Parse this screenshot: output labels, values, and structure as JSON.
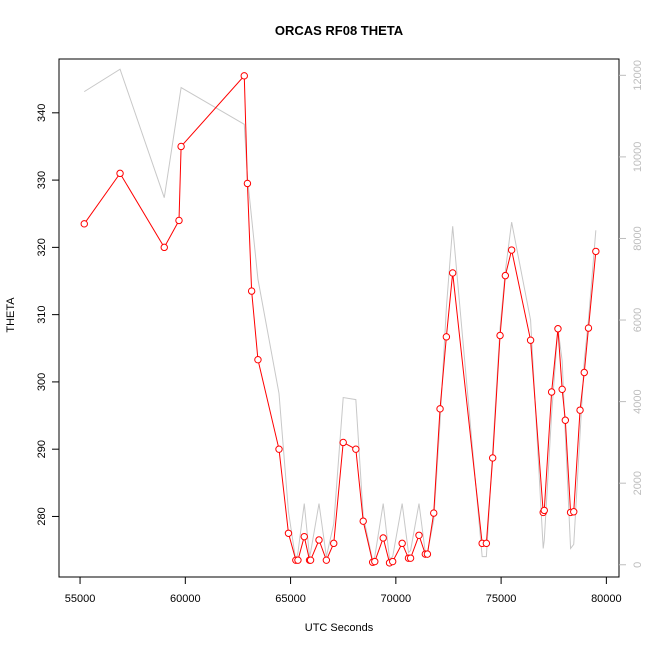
{
  "chart_data": {
    "type": "line",
    "title": "ORCAS RF08 THETA",
    "xlabel": "UTC Seconds",
    "ylabel": "THETA",
    "xlim": [
      54000,
      80600
    ],
    "ylim": [
      271,
      348
    ],
    "y2lim": [
      -300,
      12400
    ],
    "x_ticks": [
      55000,
      60000,
      65000,
      70000,
      75000,
      80000
    ],
    "y_ticks": [
      280,
      290,
      300,
      310,
      320,
      330,
      340
    ],
    "y2_ticks": [
      0,
      2000,
      4000,
      6000,
      8000,
      10000,
      12000
    ],
    "grid": false,
    "colors": {
      "primary": "#ff0000",
      "secondary": "#c8c8c8",
      "secondary_axis": "#bdbdbd"
    },
    "series": [
      {
        "axis": "left",
        "marker": "circle",
        "color": "#ff0000",
        "x": [
          55200,
          56900,
          59000,
          59700,
          59800,
          62800,
          62950,
          63150,
          63450,
          64450,
          64900,
          65250,
          65350,
          65650,
          65900,
          65950,
          66350,
          66700,
          67050,
          67500,
          68100,
          68450,
          68900,
          69000,
          69400,
          69700,
          69850,
          70300,
          70600,
          70700,
          71100,
          71400,
          71500,
          71800,
          72100,
          72400,
          72700,
          74100,
          74300,
          74600,
          74950,
          75200,
          75500,
          76400,
          77000,
          77050,
          77400,
          77700,
          77900,
          78050,
          78300,
          78450,
          78750,
          78950,
          79150,
          79500
        ],
        "y": [
          323.5,
          331,
          320,
          324,
          335,
          345.5,
          329.5,
          313.5,
          303.3,
          290,
          277.5,
          273.5,
          273.5,
          277,
          273.5,
          273.5,
          276.5,
          273.5,
          276,
          291,
          290,
          279.3,
          273.2,
          273.3,
          276.8,
          273.1,
          273.3,
          276,
          273.8,
          273.8,
          277.2,
          274.4,
          274.4,
          280.5,
          296,
          306.7,
          316.2,
          276,
          276,
          288.7,
          306.9,
          315.8,
          319.6,
          306.2,
          280.6,
          280.9,
          298.5,
          307.9,
          298.9,
          294.3,
          280.6,
          280.7,
          295.8,
          301.4,
          308,
          319.4
        ]
      },
      {
        "axis": "right",
        "marker": "none",
        "color": "#c8c8c8",
        "x": [
          55200,
          56900,
          59000,
          59800,
          62800,
          62950,
          63150,
          63450,
          64450,
          64900,
          65250,
          65350,
          65650,
          65900,
          65950,
          66350,
          66700,
          67050,
          67500,
          68100,
          68450,
          68900,
          69000,
          69400,
          69700,
          69850,
          70300,
          70600,
          70700,
          71100,
          71400,
          71500,
          71800,
          72100,
          72400,
          72700,
          74100,
          74300,
          74600,
          74950,
          75200,
          75500,
          76400,
          77000,
          77050,
          77400,
          77700,
          77900,
          78050,
          78300,
          78450,
          78750,
          78950,
          79150,
          79500
        ],
        "y": [
          11600,
          12150,
          9000,
          11700,
          10800,
          9500,
          8500,
          7000,
          4200,
          1300,
          100,
          300,
          1500,
          200,
          300,
          1500,
          200,
          1000,
          4100,
          4050,
          1200,
          100,
          200,
          1500,
          150,
          200,
          1500,
          300,
          350,
          1500,
          300,
          300,
          1100,
          3500,
          6300,
          8300,
          200,
          200,
          2800,
          5800,
          7200,
          8400,
          6000,
          400,
          600,
          3700,
          5800,
          5000,
          3200,
          400,
          500,
          3200,
          5000,
          6000,
          8200
        ]
      }
    ]
  }
}
